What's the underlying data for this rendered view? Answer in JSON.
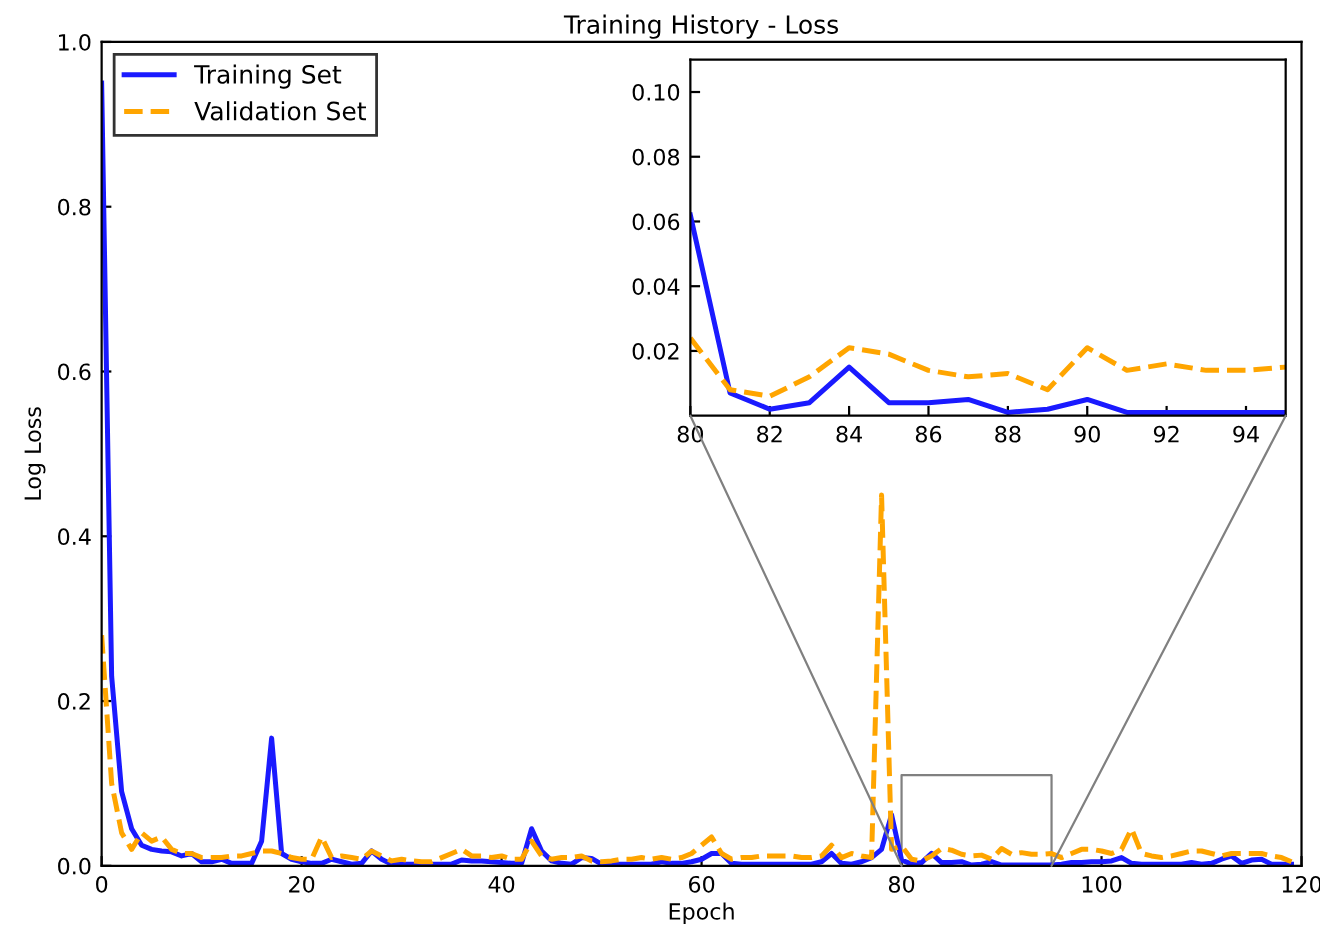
{
  "chart_data": [
    {
      "type": "line",
      "title": "Training History - Loss",
      "xlabel": "Epoch",
      "ylabel": "Log Loss",
      "x": [
        0,
        1,
        2,
        3,
        4,
        5,
        6,
        7,
        8,
        9,
        10,
        11,
        12,
        13,
        14,
        15,
        16,
        17,
        18,
        19,
        20,
        21,
        22,
        23,
        24,
        25,
        26,
        27,
        28,
        29,
        30,
        31,
        32,
        33,
        34,
        35,
        36,
        37,
        38,
        39,
        40,
        41,
        42,
        43,
        44,
        45,
        46,
        47,
        48,
        49,
        50,
        51,
        52,
        53,
        54,
        55,
        56,
        57,
        58,
        59,
        60,
        61,
        62,
        63,
        64,
        65,
        66,
        67,
        68,
        69,
        70,
        71,
        72,
        73,
        74,
        75,
        76,
        77,
        78,
        79,
        80,
        81,
        82,
        83,
        84,
        85,
        86,
        87,
        88,
        89,
        90,
        91,
        92,
        93,
        94,
        95,
        96,
        97,
        98,
        99,
        100,
        101,
        102,
        103,
        104,
        105,
        106,
        107,
        108,
        109,
        110,
        111,
        112,
        113,
        114,
        115,
        116,
        117,
        118,
        119
      ],
      "series": [
        {
          "name": "Training Set",
          "color": "#1a1aff",
          "line_style": "solid",
          "values": [
            0.95,
            0.23,
            0.09,
            0.045,
            0.025,
            0.02,
            0.018,
            0.017,
            0.012,
            0.015,
            0.005,
            0.005,
            0.008,
            0.003,
            0.003,
            0.003,
            0.03,
            0.155,
            0.015,
            0.008,
            0.005,
            0.003,
            0.003,
            0.008,
            0.005,
            0.002,
            0.003,
            0.018,
            0.008,
            0.002,
            0.002,
            0.002,
            0.002,
            0.002,
            0.002,
            0.002,
            0.007,
            0.006,
            0.006,
            0.005,
            0.004,
            0.003,
            0.003,
            0.045,
            0.018,
            0.006,
            0.003,
            0.002,
            0.01,
            0.009,
            0.002,
            0.002,
            0.002,
            0.002,
            0.002,
            0.002,
            0.005,
            0.003,
            0.003,
            0.005,
            0.008,
            0.015,
            0.015,
            0.003,
            0.002,
            0.002,
            0.002,
            0.002,
            0.002,
            0.002,
            0.002,
            0.002,
            0.005,
            0.015,
            0.003,
            0.002,
            0.005,
            0.01,
            0.02,
            0.062,
            0.007,
            0.002,
            0.004,
            0.015,
            0.004,
            0.004,
            0.005,
            0.001,
            0.002,
            0.005,
            0.001,
            0.001,
            0.001,
            0.001,
            0.001,
            0.001,
            0.002,
            0.004,
            0.004,
            0.005,
            0.005,
            0.006,
            0.01,
            0.003,
            0.002,
            0.002,
            0.002,
            0.002,
            0.002,
            0.004,
            0.002,
            0.003,
            0.008,
            0.012,
            0.003,
            0.007,
            0.008,
            0.002,
            0.002,
            0.002
          ]
        },
        {
          "name": "Validation Set",
          "color": "#ffa500",
          "line_style": "dashed",
          "values": [
            0.28,
            0.1,
            0.04,
            0.02,
            0.04,
            0.03,
            0.035,
            0.02,
            0.015,
            0.015,
            0.01,
            0.01,
            0.01,
            0.012,
            0.012,
            0.015,
            0.018,
            0.018,
            0.015,
            0.01,
            0.008,
            0.008,
            0.035,
            0.01,
            0.012,
            0.01,
            0.008,
            0.018,
            0.012,
            0.006,
            0.008,
            0.006,
            0.005,
            0.005,
            0.01,
            0.015,
            0.02,
            0.012,
            0.012,
            0.01,
            0.012,
            0.008,
            0.008,
            0.03,
            0.012,
            0.008,
            0.01,
            0.01,
            0.012,
            0.006,
            0.005,
            0.006,
            0.008,
            0.008,
            0.01,
            0.008,
            0.01,
            0.008,
            0.01,
            0.015,
            0.025,
            0.035,
            0.015,
            0.008,
            0.01,
            0.01,
            0.012,
            0.012,
            0.012,
            0.012,
            0.01,
            0.01,
            0.012,
            0.025,
            0.01,
            0.015,
            0.012,
            0.01,
            0.45,
            0.02,
            0.024,
            0.008,
            0.006,
            0.012,
            0.021,
            0.019,
            0.014,
            0.012,
            0.013,
            0.008,
            0.021,
            0.014,
            0.016,
            0.014,
            0.014,
            0.015,
            0.01,
            0.015,
            0.02,
            0.02,
            0.018,
            0.015,
            0.02,
            0.045,
            0.015,
            0.012,
            0.01,
            0.012,
            0.015,
            0.018,
            0.018,
            0.015,
            0.012,
            0.015,
            0.015,
            0.015,
            0.015,
            0.012,
            0.01,
            0.005
          ]
        }
      ],
      "xlim": [
        0,
        120
      ],
      "ylim": [
        0,
        1.0
      ],
      "xticks": [
        0,
        20,
        40,
        60,
        80,
        100,
        120
      ],
      "yticks": [
        {
          "value": 0,
          "label": "0.0"
        },
        {
          "value": 0.2,
          "label": "0.2"
        },
        {
          "value": 0.4,
          "label": "0.4"
        },
        {
          "value": 0.6,
          "label": "0.6"
        },
        {
          "value": 0.8,
          "label": "0.8"
        },
        {
          "value": 1.0,
          "label": "1.0"
        }
      ],
      "legend": "top left",
      "grid": false,
      "marker": "none"
    },
    {
      "type": "line",
      "x": [
        80,
        81,
        82,
        83,
        84,
        85,
        86,
        87,
        88,
        89,
        90,
        91,
        92,
        93,
        94,
        95
      ],
      "series": [
        {
          "color": "#1a1aff",
          "line_style": "solid",
          "values": [
            0.062,
            0.007,
            0.002,
            0.004,
            0.015,
            0.004,
            0.004,
            0.005,
            0.001,
            0.002,
            0.005,
            0.001,
            0.001,
            0.001,
            0.001,
            0.001
          ]
        },
        {
          "color": "#ffa500",
          "line_style": "dashed",
          "values": [
            0.024,
            0.008,
            0.006,
            0.012,
            0.021,
            0.019,
            0.014,
            0.012,
            0.013,
            0.008,
            0.021,
            0.014,
            0.016,
            0.014,
            0.014,
            0.015
          ]
        }
      ],
      "xlim": [
        80,
        95
      ],
      "ylim": [
        0,
        0.11
      ],
      "xticks": [
        80,
        82,
        84,
        86,
        88,
        90,
        92,
        94
      ],
      "yticks": [
        0.02,
        0.04,
        0.06,
        0.08,
        {
          "value": 0.1,
          "label": "0.10"
        }
      ],
      "grid": false,
      "marker": "none"
    }
  ]
}
